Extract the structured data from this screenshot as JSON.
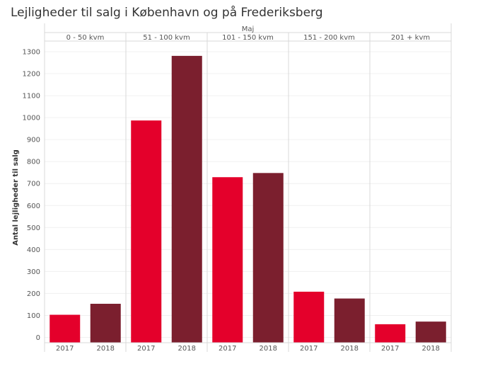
{
  "title": "Lejligheder til salg i København og på Frederiksberg",
  "chart_data": {
    "type": "bar",
    "title": "Lejligheder til salg i København og på Frederiksberg",
    "column_header": "Maj",
    "ylabel": "Antal lejligheder til salg",
    "xlabel": "",
    "ylim": [
      0,
      1350
    ],
    "yticks": [
      0,
      100,
      200,
      300,
      400,
      500,
      600,
      700,
      800,
      900,
      1000,
      1100,
      1200,
      1300
    ],
    "grid": true,
    "panels": [
      {
        "label": "0 - 50 kvm",
        "categories": [
          "2017",
          "2018"
        ],
        "values": [
          103,
          153
        ]
      },
      {
        "label": "51 - 100 kvm",
        "categories": [
          "2017",
          "2018"
        ],
        "values": [
          987,
          1281
        ]
      },
      {
        "label": "101 - 150 kvm",
        "categories": [
          "2017",
          "2018"
        ],
        "values": [
          729,
          748
        ]
      },
      {
        "label": "151 - 200 kvm",
        "categories": [
          "2017",
          "2018"
        ],
        "values": [
          208,
          177
        ]
      },
      {
        "label": "201 + kvm",
        "categories": [
          "2017",
          "2018"
        ],
        "values": [
          60,
          72
        ]
      }
    ],
    "colors": {
      "2017": "#e4002b",
      "2018": "#7b1f2e"
    }
  }
}
